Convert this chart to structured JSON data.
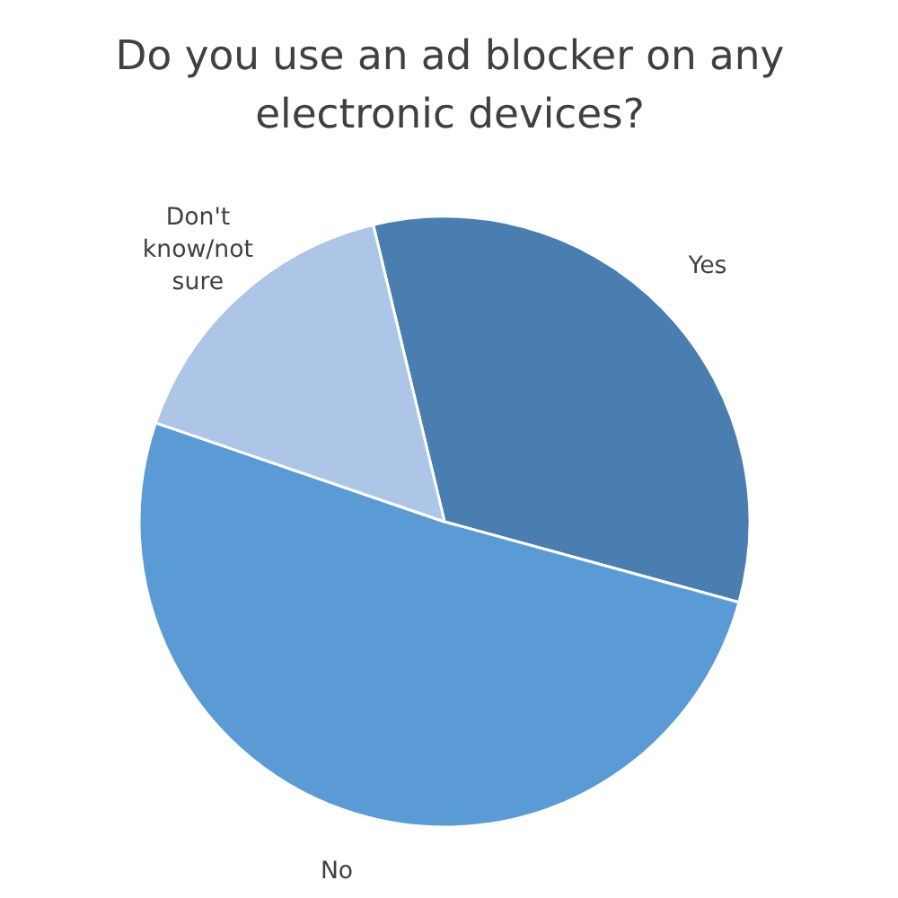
{
  "chart_data": {
    "type": "pie",
    "title": "Do you use an ad blocker on any electronic devices?",
    "categories": [
      "Yes",
      "No",
      "Don't know/not sure"
    ],
    "values": [
      33,
      51,
      16
    ],
    "colors": [
      "#4a7eb0",
      "#5b9bd5",
      "#adc5e6"
    ]
  }
}
